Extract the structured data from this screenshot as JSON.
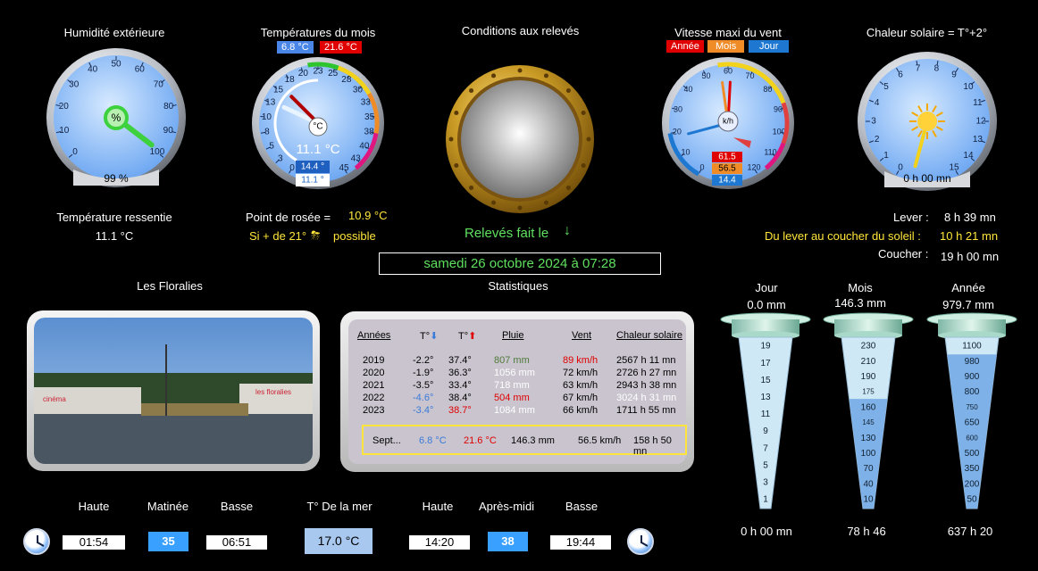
{
  "humidity": {
    "title": "Humidité extérieure",
    "unit": "%",
    "value_text": "99 %",
    "value": 99,
    "ticks": [
      "0",
      "10",
      "20",
      "30",
      "40",
      "50",
      "60",
      "70",
      "80",
      "90",
      "100"
    ]
  },
  "felt_temp": {
    "label": "Température ressentie",
    "value": "11.1 °C"
  },
  "month_temp": {
    "title": "Températures du mois",
    "min": "6.8 °C",
    "max": "21.6 °C",
    "unit": "°C",
    "current": "11.1 °C",
    "box_max": "14.4 °",
    "box_min": "11.1 °",
    "ticks": [
      "0",
      "3",
      "5",
      "8",
      "10",
      "13",
      "15",
      "18",
      "20",
      "23",
      "25",
      "28",
      "30",
      "33",
      "35",
      "38",
      "40",
      "43",
      "45"
    ]
  },
  "dew": {
    "label": "Point de rosée  =",
    "value": "10.9 °C",
    "storm_text": "Si + de 21°",
    "storm_icon": "storm-icon",
    "storm_suffix": "possible"
  },
  "conditions": {
    "title": "Conditions aux relevés"
  },
  "releves": {
    "label": "Relevés fait le",
    "arrow": "🡻",
    "datetime": "samedi 26 octobre 2024 à 07:28"
  },
  "wind": {
    "title": "Vitesse maxi du vent",
    "tabs": [
      "Année",
      "Mois",
      "Jour"
    ],
    "unit": "k/h",
    "values": [
      "61.5",
      "56.5",
      "14.4"
    ],
    "ticks": [
      "0",
      "10",
      "20",
      "30",
      "40",
      "50",
      "60",
      "70",
      "80",
      "90",
      "100",
      "110",
      "120"
    ]
  },
  "solar": {
    "title": "Chaleur solaire = T°+2°",
    "time": "0 h 00 mn",
    "ticks": [
      "0",
      "1",
      "2",
      "3",
      "4",
      "5",
      "6",
      "7",
      "8",
      "9",
      "10",
      "11",
      "12",
      "13",
      "14",
      "15"
    ]
  },
  "sun": {
    "lever_label": "Lever :",
    "lever": "8 h 39 mn",
    "duration_label": "Du lever au coucher du soleil :",
    "duration": "10 h 21 mn",
    "coucher_label": "Coucher :",
    "coucher": "19 h 00 mn"
  },
  "photo": {
    "title": "Les Floralies",
    "sign1": "cinéma",
    "sign2": "les floralies"
  },
  "stats": {
    "title": "Statistiques",
    "headers": [
      "Années",
      "T°",
      "T°",
      "Pluie",
      "Vent",
      "Chaleur solaire"
    ],
    "rows": [
      [
        "2019",
        "-2.2°",
        "37.4°",
        "807 mm",
        "89 km/h",
        "2567 h 11 mn"
      ],
      [
        "2020",
        "-1.9°",
        "36.3°",
        "1056 mm",
        "72 km/h",
        "2726 h 27 mn"
      ],
      [
        "2021",
        "-3.5°",
        "33.4°",
        "718 mm",
        "63 km/h",
        "2943 h 38 mn"
      ],
      [
        "2022",
        "-4.6°",
        "38.4°",
        "504 mm",
        "67 km/h",
        "3024 h 31 mn"
      ],
      [
        "2023",
        "-3.4°",
        "38.7°",
        "1084 mm",
        "66 km/h",
        "1711 h 55 mn"
      ]
    ],
    "current": [
      "Sept...",
      "6.8 °C",
      "21.6 °C",
      "146.3 mm",
      "56.5 km/h",
      "158 h 50 mn"
    ]
  },
  "rain": {
    "jour": {
      "title": "Jour",
      "value": "0.0 mm",
      "time": "0 h 00 mn",
      "fill": 0.0,
      "scale": [
        "19",
        "17",
        "15",
        "13",
        "11",
        "9",
        "7",
        "5",
        "3",
        "1"
      ]
    },
    "mois": {
      "title": "Mois",
      "value": "146.3 mm",
      "time": "78 h 46",
      "fill": 0.64,
      "scale": [
        "230",
        "210",
        "190",
        "175",
        "160",
        "145",
        "130",
        "100",
        "70",
        "40",
        "10"
      ]
    },
    "annee": {
      "title": "Année",
      "value": "979.7 mm",
      "time": "637 h 20",
      "fill": 0.9,
      "scale": [
        "1100",
        "980",
        "900",
        "800",
        "750",
        "650",
        "600",
        "500",
        "350",
        "200",
        "50"
      ]
    }
  },
  "tides": {
    "haute1_label": "Haute",
    "haute1": "01:54",
    "matinee_label": "Matinée",
    "matinee": "35",
    "basse1_label": "Basse",
    "basse1": "06:51",
    "mer_label": "T° De la mer",
    "mer": "17.0 °C",
    "haute2_label": "Haute",
    "haute2": "14:20",
    "apm_label": "Après-midi",
    "apm": "38",
    "basse2_label": "Basse",
    "basse2": "19:44"
  },
  "colors": {
    "gauge_blue": "#7fb6f5",
    "accent_yellow": "#ffe53b",
    "green": "#5fe05f",
    "red": "#e00000",
    "orange": "#f08c28",
    "blue": "#1e78d2"
  }
}
